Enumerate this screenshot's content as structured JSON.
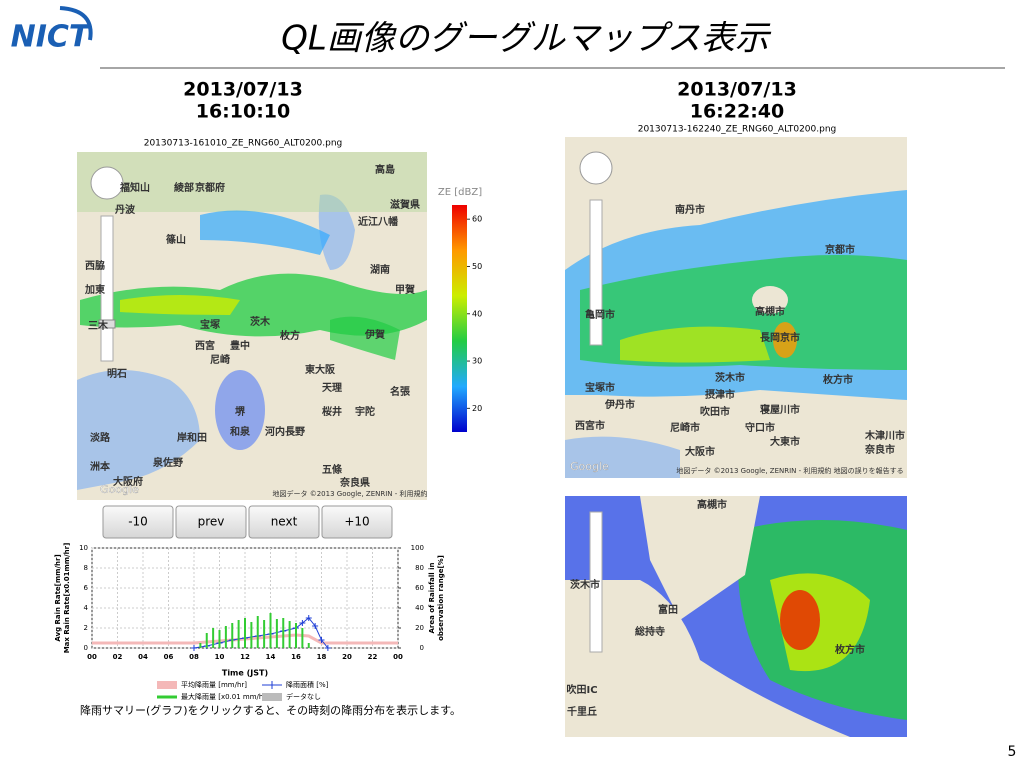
{
  "header": {
    "logo": "NICT",
    "title": "QL画像のグーグルマップス表示"
  },
  "left": {
    "date": "2013/07/13",
    "time": "16:10:10",
    "filename": "20130713-161010_ZE_RNG60_ALT0200.png",
    "map_labels": [
      "高島",
      "京都府",
      "丹波",
      "篠山",
      "滋賀県",
      "近江八幡",
      "茨木",
      "宝塚",
      "枚方",
      "西宮",
      "豊中",
      "尼崎",
      "東大阪",
      "天理",
      "堺",
      "和泉",
      "岸和田",
      "泉佐野",
      "河内長野",
      "五條",
      "奈良県",
      "大阪府",
      "淡路",
      "洲本",
      "桜井",
      "宇陀",
      "名張",
      "甲賀",
      "湖南",
      "伊賀",
      "明石",
      "綾部",
      "福知山",
      "西脇",
      "加東",
      "三木"
    ],
    "map_credit": "地図データ ©2013 Google, ZENRIN - 利用規約",
    "google": "Google",
    "colorbar": {
      "label": "ZE [dBZ]",
      "clim": [
        15,
        63
      ],
      "ticks": [
        20,
        30,
        40,
        50,
        60
      ]
    },
    "buttons": [
      "-10",
      "prev",
      "next",
      "+10"
    ],
    "rain_chart": {
      "ylabel": [
        "Avg Rain Rate[mm/hr]",
        "Max Rain Rate[x0.01mm/hr]"
      ],
      "y2label": [
        "Area of Rainfall in",
        "observation range[%]"
      ],
      "xlabel": "Time (JST)",
      "xlim": [
        0,
        24
      ],
      "xticks": [
        {
          "value": 0,
          "label": "00"
        },
        {
          "value": 2,
          "label": "02"
        },
        {
          "value": 4,
          "label": "04"
        },
        {
          "value": 6,
          "label": "06"
        },
        {
          "value": 8,
          "label": "08"
        },
        10,
        12,
        14,
        16,
        18,
        20,
        22,
        {
          "value": 24,
          "label": "00"
        }
      ],
      "ylim": [
        0,
        10
      ],
      "yticks": [
        0,
        2,
        4,
        6,
        8,
        10
      ],
      "y2lim": [
        0,
        100
      ],
      "y2ticks": [
        0,
        20,
        40,
        60,
        80,
        100
      ],
      "series": [
        {
          "name": "平均降雨量 [mm/hr]",
          "color": "#f4b8b8",
          "x": [
            0,
            8,
            9,
            10,
            11,
            12,
            13,
            14,
            15,
            16,
            17,
            18,
            24
          ],
          "values": [
            0.5,
            0.5,
            0.6,
            0.7,
            0.8,
            0.9,
            1,
            1.1,
            1.2,
            1.3,
            1.2,
            0.5,
            0.5
          ]
        },
        {
          "name": "降雨面積 [%]",
          "color": "#1f3fd6",
          "axis": "y2",
          "x": [
            8,
            9,
            10,
            11,
            12,
            13,
            14,
            15,
            16,
            16.5,
            17,
            17.5,
            18,
            18.5
          ],
          "values": [
            0,
            2,
            5,
            8,
            10,
            12,
            14,
            17,
            20,
            25,
            30,
            22,
            8,
            0
          ]
        },
        {
          "name": "最大降雨量 [x0.01 mm/hr]",
          "color": "#33cc33",
          "x": [
            8.5,
            9,
            9.5,
            10,
            10.5,
            11,
            11.5,
            12,
            12.5,
            13,
            13.5,
            14,
            14.5,
            15,
            15.5,
            16,
            16.5,
            17
          ],
          "values": [
            0.5,
            1.5,
            2,
            1.8,
            2.2,
            2.5,
            2.8,
            3,
            2.6,
            3.2,
            2.8,
            3.5,
            2.9,
            3,
            2.7,
            2.5,
            2,
            0.5
          ]
        },
        {
          "name": "データなし",
          "color": "#bbbbbb"
        }
      ]
    },
    "caption": "降雨サマリー(グラフ)をクリックすると、その時刻の降雨分布を表示します。"
  },
  "right": {
    "date": "2013/07/13",
    "time": "16:22:40",
    "filename": "20130713-162240_ZE_RNG60_ALT0200.png",
    "map_labels": [
      "南丹市",
      "高槻市",
      "京都市",
      "茨木市",
      "枚方市",
      "宝塚市",
      "伊丹市",
      "西宮市",
      "尼崎市",
      "吹田市",
      "守口市",
      "大東市",
      "大阪市",
      "奈良市",
      "長岡京市",
      "木津川市",
      "亀岡市",
      "摂津市",
      "寝屋川市"
    ],
    "map_credit": "地図データ ©2013 Google, ZENRIN - 利用規約 地図の誤りを報告する",
    "google": "Google",
    "zoom_labels": [
      "高槻市",
      "茨木市",
      "枚方市",
      "富田",
      "総持寺",
      "吹田IC",
      "千里丘"
    ]
  },
  "page_number": "5"
}
